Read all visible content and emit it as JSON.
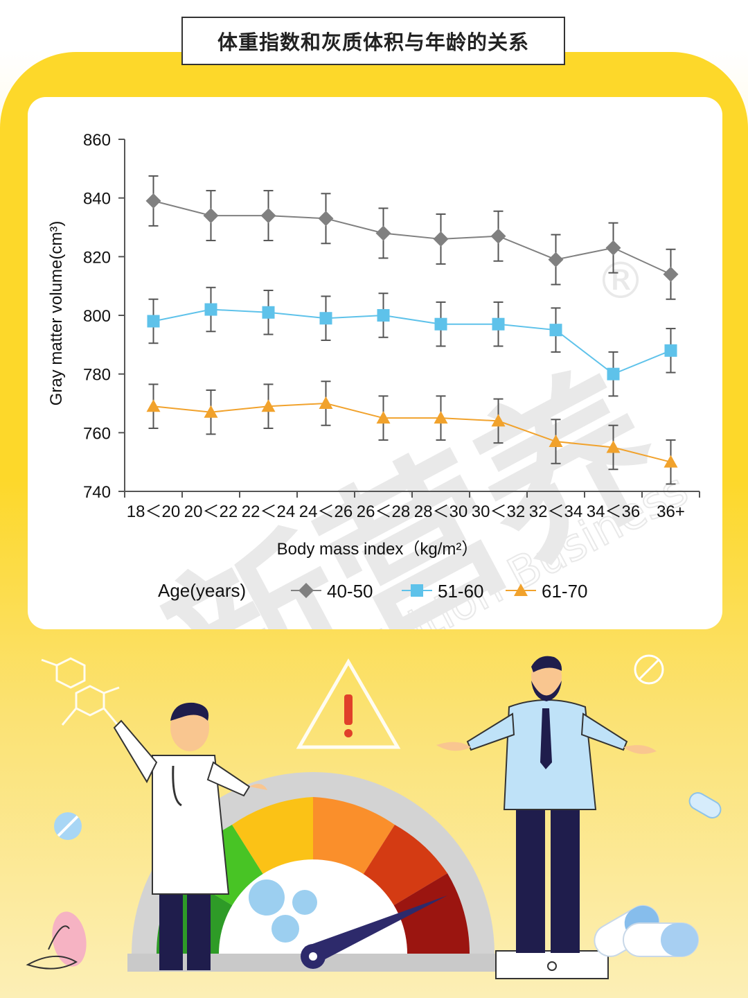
{
  "title": "体重指数和灰质体积与年龄的关系",
  "watermark": {
    "cn": "新营养",
    "en": "New Nutrition Business",
    "reg": "®"
  },
  "colors": {
    "panel": "#fdd82a",
    "series_40_50": "#808080",
    "series_51_60": "#5ec2ea",
    "series_61_70": "#f1a22c"
  },
  "chart_data": {
    "type": "line",
    "title": "",
    "xlabel": "Body mass index（kg/m²）",
    "ylabel": "Gray matter volume(cm³)",
    "ylim": [
      740,
      860
    ],
    "yticks": [
      740,
      760,
      780,
      800,
      820,
      840,
      860
    ],
    "categories": [
      "18＜20",
      "20＜22",
      "22＜24",
      "24＜26",
      "26＜28",
      "28＜30",
      "30＜32",
      "32＜34",
      "34＜36",
      "36+"
    ],
    "legend_title": "Age(years)",
    "legend_position": "bottom",
    "grid": false,
    "series": [
      {
        "name": "40-50",
        "marker": "diamond",
        "color": "#808080",
        "values": [
          839,
          834,
          834,
          833,
          828,
          826,
          827,
          819,
          823,
          814
        ],
        "error": [
          8.5,
          8.5,
          8.5,
          8.5,
          8.5,
          8.5,
          8.5,
          8.5,
          8.5,
          8.5
        ]
      },
      {
        "name": "51-60",
        "marker": "square",
        "color": "#5ec2ea",
        "values": [
          798,
          802,
          801,
          799,
          800,
          797,
          797,
          795,
          780,
          788
        ],
        "error": [
          7.5,
          7.5,
          7.5,
          7.5,
          7.5,
          7.5,
          7.5,
          7.5,
          7.5,
          7.5
        ]
      },
      {
        "name": "61-70",
        "marker": "triangle",
        "color": "#f1a22c",
        "values": [
          769,
          767,
          769,
          770,
          765,
          765,
          764,
          757,
          755,
          750
        ],
        "error": [
          7.5,
          7.5,
          7.5,
          7.5,
          7.5,
          7.5,
          7.5,
          7.5,
          7.5,
          7.5
        ]
      }
    ]
  }
}
